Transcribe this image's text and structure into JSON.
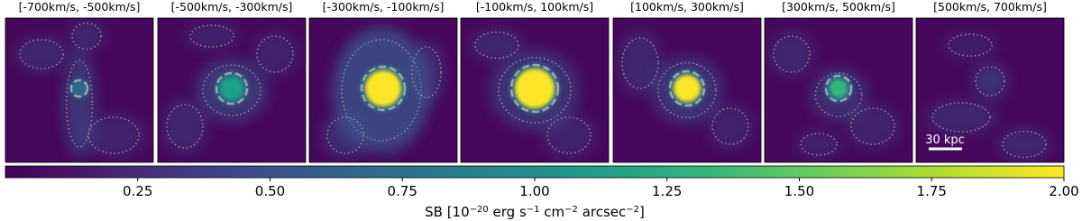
{
  "chart_data": {
    "type": "image-grid",
    "panels": [
      {
        "title": "[-700km/s, -500km/s]"
      },
      {
        "title": "[-500km/s, -300km/s]"
      },
      {
        "title": "[-300km/s, -100km/s]"
      },
      {
        "title": "[-100km/s, 100km/s]"
      },
      {
        "title": "[100km/s, 300km/s]"
      },
      {
        "title": "[300km/s, 500km/s]"
      },
      {
        "title": "[500km/s, 700km/s]"
      }
    ],
    "scale_bar": "30 kpc",
    "colorbar": {
      "colormap": "viridis",
      "lim": [
        0,
        2
      ],
      "ticks": [
        0.25,
        {
          "value": 0.5,
          "label": "0.50"
        },
        0.75,
        {
          "value": 1,
          "label": "1.00"
        },
        1.25,
        {
          "value": 1.5,
          "label": "1.50"
        },
        1.75,
        {
          "value": 2,
          "label": "2.00"
        }
      ],
      "label": [
        "SB [10",
        "−20",
        " erg s",
        "−1",
        " cm",
        "−2",
        " arcsec",
        "−2",
        "]"
      ]
    }
  }
}
